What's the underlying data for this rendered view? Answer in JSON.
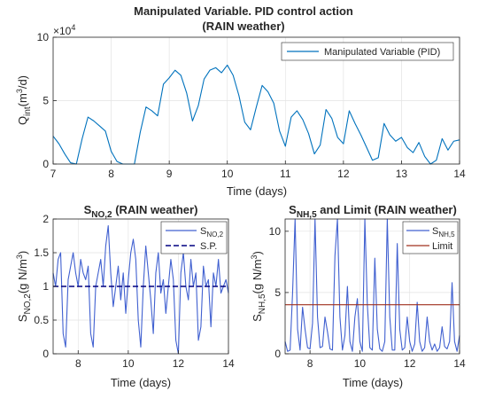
{
  "figure": {
    "title_line1": "Manipulated Variable. PID control action",
    "title_line2": "(RAIN weather)"
  },
  "chart_data": [
    {
      "id": "top",
      "type": "line",
      "title": "Manipulated Variable. PID control action (RAIN weather)",
      "xlabel": "Time (days)",
      "ylabel_main": "Q",
      "ylabel_sub": "int",
      "ylabel_unit_pre": "(m",
      "ylabel_unit_sup": "3",
      "ylabel_unit_post": "/d)",
      "exponent_base": "×10",
      "exponent_power": "4",
      "xlim": [
        7,
        14
      ],
      "ylim": [
        0,
        10
      ],
      "y_multiplier": 10000,
      "xticks": [
        "7",
        "8",
        "9",
        "10",
        "11",
        "12",
        "13",
        "14"
      ],
      "yticks": [
        "0",
        "5",
        "10"
      ],
      "grid": true,
      "legend_placement": "top-right",
      "color": "#0072BD",
      "series": [
        {
          "name": "Manipulated Variable (PID)",
          "x": [
            7.0,
            7.1,
            7.2,
            7.3,
            7.4,
            7.5,
            7.6,
            7.7,
            7.8,
            7.9,
            8.0,
            8.1,
            8.2,
            8.3,
            8.4,
            8.5,
            8.6,
            8.7,
            8.8,
            8.9,
            9.0,
            9.1,
            9.2,
            9.3,
            9.4,
            9.5,
            9.6,
            9.7,
            9.8,
            9.9,
            10.0,
            10.1,
            10.2,
            10.3,
            10.4,
            10.5,
            10.6,
            10.7,
            10.8,
            10.9,
            11.0,
            11.1,
            11.2,
            11.3,
            11.4,
            11.5,
            11.6,
            11.7,
            11.8,
            11.9,
            12.0,
            12.1,
            12.2,
            12.3,
            12.4,
            12.5,
            12.6,
            12.7,
            12.8,
            12.9,
            13.0,
            13.1,
            13.2,
            13.3,
            13.4,
            13.5,
            13.6,
            13.7,
            13.8,
            13.9,
            14.0
          ],
          "y": [
            2.2,
            1.6,
            0.8,
            0.1,
            0.0,
            2.0,
            3.7,
            3.4,
            3.0,
            2.6,
            1.0,
            0.2,
            0.0,
            0.0,
            0.0,
            2.5,
            4.5,
            4.2,
            3.8,
            6.3,
            6.8,
            7.4,
            7.0,
            5.6,
            3.4,
            4.6,
            6.7,
            7.4,
            7.6,
            7.2,
            7.8,
            7.0,
            5.4,
            3.3,
            2.7,
            4.5,
            6.2,
            5.7,
            4.8,
            2.6,
            1.4,
            3.7,
            4.2,
            3.5,
            2.4,
            0.8,
            1.5,
            4.3,
            3.6,
            2.1,
            1.6,
            4.2,
            3.2,
            2.3,
            1.3,
            0.3,
            0.5,
            3.2,
            2.3,
            1.8,
            2.1,
            1.3,
            0.9,
            1.7,
            0.6,
            0.0,
            0.3,
            2.0,
            1.1,
            1.8,
            1.9
          ]
        }
      ]
    },
    {
      "id": "snox",
      "type": "line",
      "title_main": "S",
      "title_sub": "NO,2",
      "title_post": " (RAIN weather)",
      "xlabel": "Time (days)",
      "ylabel_main": "S",
      "ylabel_sub": "NO,2",
      "ylabel_unit_pre": "(g N/m",
      "ylabel_unit_sup": "3",
      "ylabel_unit_post": ")",
      "xlim": [
        7,
        14
      ],
      "ylim": [
        0,
        2
      ],
      "xticks": [
        "8",
        "10",
        "12",
        "14"
      ],
      "yticks": [
        "0",
        "0.5",
        "1",
        "1.5",
        "2"
      ],
      "grid": true,
      "legend_placement": "top-right",
      "series": [
        {
          "name_main": "S",
          "name_sub": "NO,2",
          "color": "#4060D0",
          "x": [
            7.0,
            7.1,
            7.2,
            7.3,
            7.4,
            7.5,
            7.6,
            7.7,
            7.8,
            7.9,
            8.0,
            8.1,
            8.2,
            8.3,
            8.4,
            8.5,
            8.6,
            8.7,
            8.8,
            8.9,
            9.0,
            9.1,
            9.2,
            9.3,
            9.4,
            9.5,
            9.6,
            9.7,
            9.8,
            9.9,
            10.0,
            10.1,
            10.2,
            10.3,
            10.4,
            10.5,
            10.6,
            10.7,
            10.8,
            10.9,
            11.0,
            11.1,
            11.2,
            11.3,
            11.4,
            11.5,
            11.6,
            11.7,
            11.8,
            11.9,
            12.0,
            12.1,
            12.2,
            12.3,
            12.4,
            12.5,
            12.6,
            12.7,
            12.8,
            12.9,
            13.0,
            13.1,
            13.2,
            13.3,
            13.4,
            13.5,
            13.6,
            13.7,
            13.8,
            13.9,
            14.0
          ],
          "y": [
            1.2,
            1.0,
            1.4,
            1.5,
            0.3,
            0.1,
            1.1,
            1.3,
            1.5,
            1.2,
            1.0,
            1.4,
            1.2,
            1.1,
            1.3,
            0.3,
            0.1,
            1.0,
            1.2,
            1.4,
            1.0,
            1.6,
            1.9,
            1.2,
            0.7,
            1.0,
            1.3,
            0.8,
            1.2,
            0.6,
            1.1,
            1.5,
            1.7,
            1.4,
            0.5,
            0.1,
            1.0,
            1.6,
            1.2,
            0.8,
            0.3,
            1.2,
            1.5,
            0.9,
            1.1,
            0.6,
            1.0,
            1.4,
            1.1,
            0.2,
            0.0,
            1.2,
            1.5,
            1.0,
            0.8,
            1.4,
            1.0,
            1.2,
            0.2,
            0.4,
            1.3,
            1.0,
            1.1,
            0.4,
            1.2,
            1.0,
            1.4,
            0.9,
            1.0,
            1.1,
            0.9
          ]
        },
        {
          "name": "S.P.",
          "color": "#000080",
          "x": [
            7,
            14
          ],
          "y": [
            1.0,
            1.0
          ]
        }
      ]
    },
    {
      "id": "snh",
      "type": "line",
      "title_main": "S",
      "title_sub": "NH,5",
      "title_post": " and Limit (RAIN weather)",
      "xlabel": "Time (days)",
      "ylabel_main": "S",
      "ylabel_sub": "NH,5",
      "ylabel_unit_pre": "(g N/m",
      "ylabel_unit_sup": "3",
      "ylabel_unit_post": ")",
      "xlim": [
        7,
        14
      ],
      "ylim": [
        0,
        11
      ],
      "xticks": [
        "8",
        "10",
        "12",
        "14"
      ],
      "yticks": [
        "0",
        "5",
        "10"
      ],
      "grid": true,
      "legend_placement": "top-right",
      "series": [
        {
          "name_main": "S",
          "name_sub": "NH,5",
          "color": "#4060D0",
          "x": [
            7.0,
            7.1,
            7.2,
            7.3,
            7.4,
            7.5,
            7.6,
            7.7,
            7.8,
            7.9,
            8.0,
            8.1,
            8.2,
            8.3,
            8.4,
            8.5,
            8.6,
            8.7,
            8.8,
            8.9,
            9.0,
            9.1,
            9.2,
            9.3,
            9.4,
            9.5,
            9.6,
            9.7,
            9.8,
            9.9,
            10.0,
            10.1,
            10.2,
            10.3,
            10.4,
            10.5,
            10.6,
            10.7,
            10.8,
            10.9,
            11.0,
            11.1,
            11.2,
            11.3,
            11.4,
            11.5,
            11.6,
            11.7,
            11.8,
            11.9,
            12.0,
            12.1,
            12.2,
            12.3,
            12.4,
            12.5,
            12.6,
            12.7,
            12.8,
            12.9,
            13.0,
            13.1,
            13.2,
            13.3,
            13.4,
            13.5,
            13.6,
            13.7,
            13.8,
            13.9,
            14.0
          ],
          "y": [
            1.0,
            0.2,
            0.3,
            5.0,
            11.0,
            2.0,
            0.3,
            3.8,
            2.0,
            0.5,
            0.4,
            2.5,
            11.0,
            3.0,
            0.5,
            0.6,
            3.0,
            1.8,
            0.4,
            0.3,
            8.0,
            11.0,
            3.0,
            0.3,
            1.5,
            5.5,
            1.0,
            0.2,
            3.0,
            4.5,
            1.0,
            0.2,
            11.0,
            4.0,
            0.5,
            0.3,
            7.8,
            2.0,
            0.4,
            0.2,
            1.0,
            11.0,
            3.0,
            0.3,
            0.3,
            9.0,
            2.0,
            0.3,
            0.5,
            3.0,
            1.0,
            0.2,
            0.8,
            4.2,
            1.0,
            0.2,
            0.5,
            3.0,
            1.0,
            0.3,
            0.8,
            0.2,
            0.5,
            2.2,
            0.6,
            0.4,
            1.0,
            5.8,
            1.0,
            0.2,
            1.5
          ]
        },
        {
          "name": "Limit",
          "color": "#A0301E",
          "x": [
            7,
            14
          ],
          "y": [
            4.0,
            4.0
          ]
        }
      ]
    }
  ]
}
